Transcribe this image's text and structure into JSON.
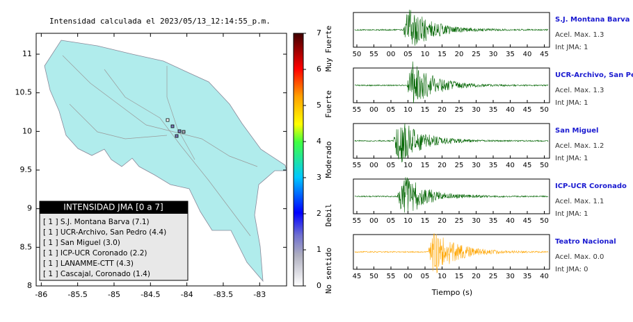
{
  "map": {
    "title": "Intensidad calculada el 2023/05/13_12:14:55_p.m.",
    "xlim": [
      -86.07,
      -82.63
    ],
    "ylim": [
      8,
      11.27
    ],
    "xticks": [
      -86,
      -85.5,
      -85,
      -84.5,
      -84,
      -83.5,
      -83
    ],
    "yticks": [
      8,
      8.5,
      9,
      9.5,
      10,
      10.5,
      11
    ]
  },
  "colorbar": {
    "lim": [
      0,
      7
    ],
    "ticks": [
      0,
      1,
      2,
      3,
      4,
      5,
      6,
      7
    ],
    "labels": [
      "No sentido",
      "Debil",
      "Moderado",
      "Fuerte",
      "Muy Fuerte"
    ]
  },
  "legend": {
    "title": "INTENSIDAD JMA [0 a 7]",
    "items": [
      "[ 1 ]  S.J. Montana Barva (7.1)",
      "[ 1 ]  UCR-Archivo, San Pedro (4.4)",
      "[ 1 ]  San Miguel (3.0)",
      "[ 1 ]  ICP-UCR Coronado (2.2)",
      "[ 1 ]  LANAMME-CTT (4.3)",
      "[ 1 ]  Cascajal, Coronado (1.4)"
    ]
  },
  "stations": [
    {
      "name": "S.J. Montana Barva",
      "accel": "Acel. Max. 1.3",
      "int": "Int JMA: 1",
      "color": "#006400",
      "ticks": [
        "50",
        "55",
        "00",
        "05",
        "10",
        "15",
        "20",
        "25",
        "30",
        "35",
        "40",
        "45"
      ]
    },
    {
      "name": "UCR-Archivo, San Pedro",
      "accel": "Acel. Max. 1.3",
      "int": "Int JMA: 1",
      "color": "#006400",
      "ticks": [
        "55",
        "00",
        "05",
        "10",
        "15",
        "20",
        "25",
        "30",
        "35",
        "40",
        "45",
        "50"
      ]
    },
    {
      "name": "San Miguel",
      "accel": "Acel. Max. 1.2",
      "int": "Int JMA: 1",
      "color": "#006400",
      "ticks": [
        "55",
        "00",
        "05",
        "10",
        "15",
        "20",
        "25",
        "30",
        "35",
        "40",
        "45",
        "50"
      ]
    },
    {
      "name": "ICP-UCR Coronado",
      "accel": "Acel. Max. 1.1",
      "int": "Int JMA: 1",
      "color": "#006400",
      "ticks": [
        "55",
        "00",
        "05",
        "10",
        "15",
        "20",
        "25",
        "30",
        "35",
        "40",
        "45",
        "50"
      ]
    },
    {
      "name": "Teatro Nacional",
      "accel": "Acel. Max. 0.0",
      "int": "Int JMA: 0",
      "color": "#ffa500",
      "ticks": [
        "45",
        "50",
        "55",
        "00",
        "05",
        "10",
        "15",
        "20",
        "25",
        "30",
        "35",
        "40"
      ]
    }
  ],
  "xlabel": "Tiempo (s)"
}
